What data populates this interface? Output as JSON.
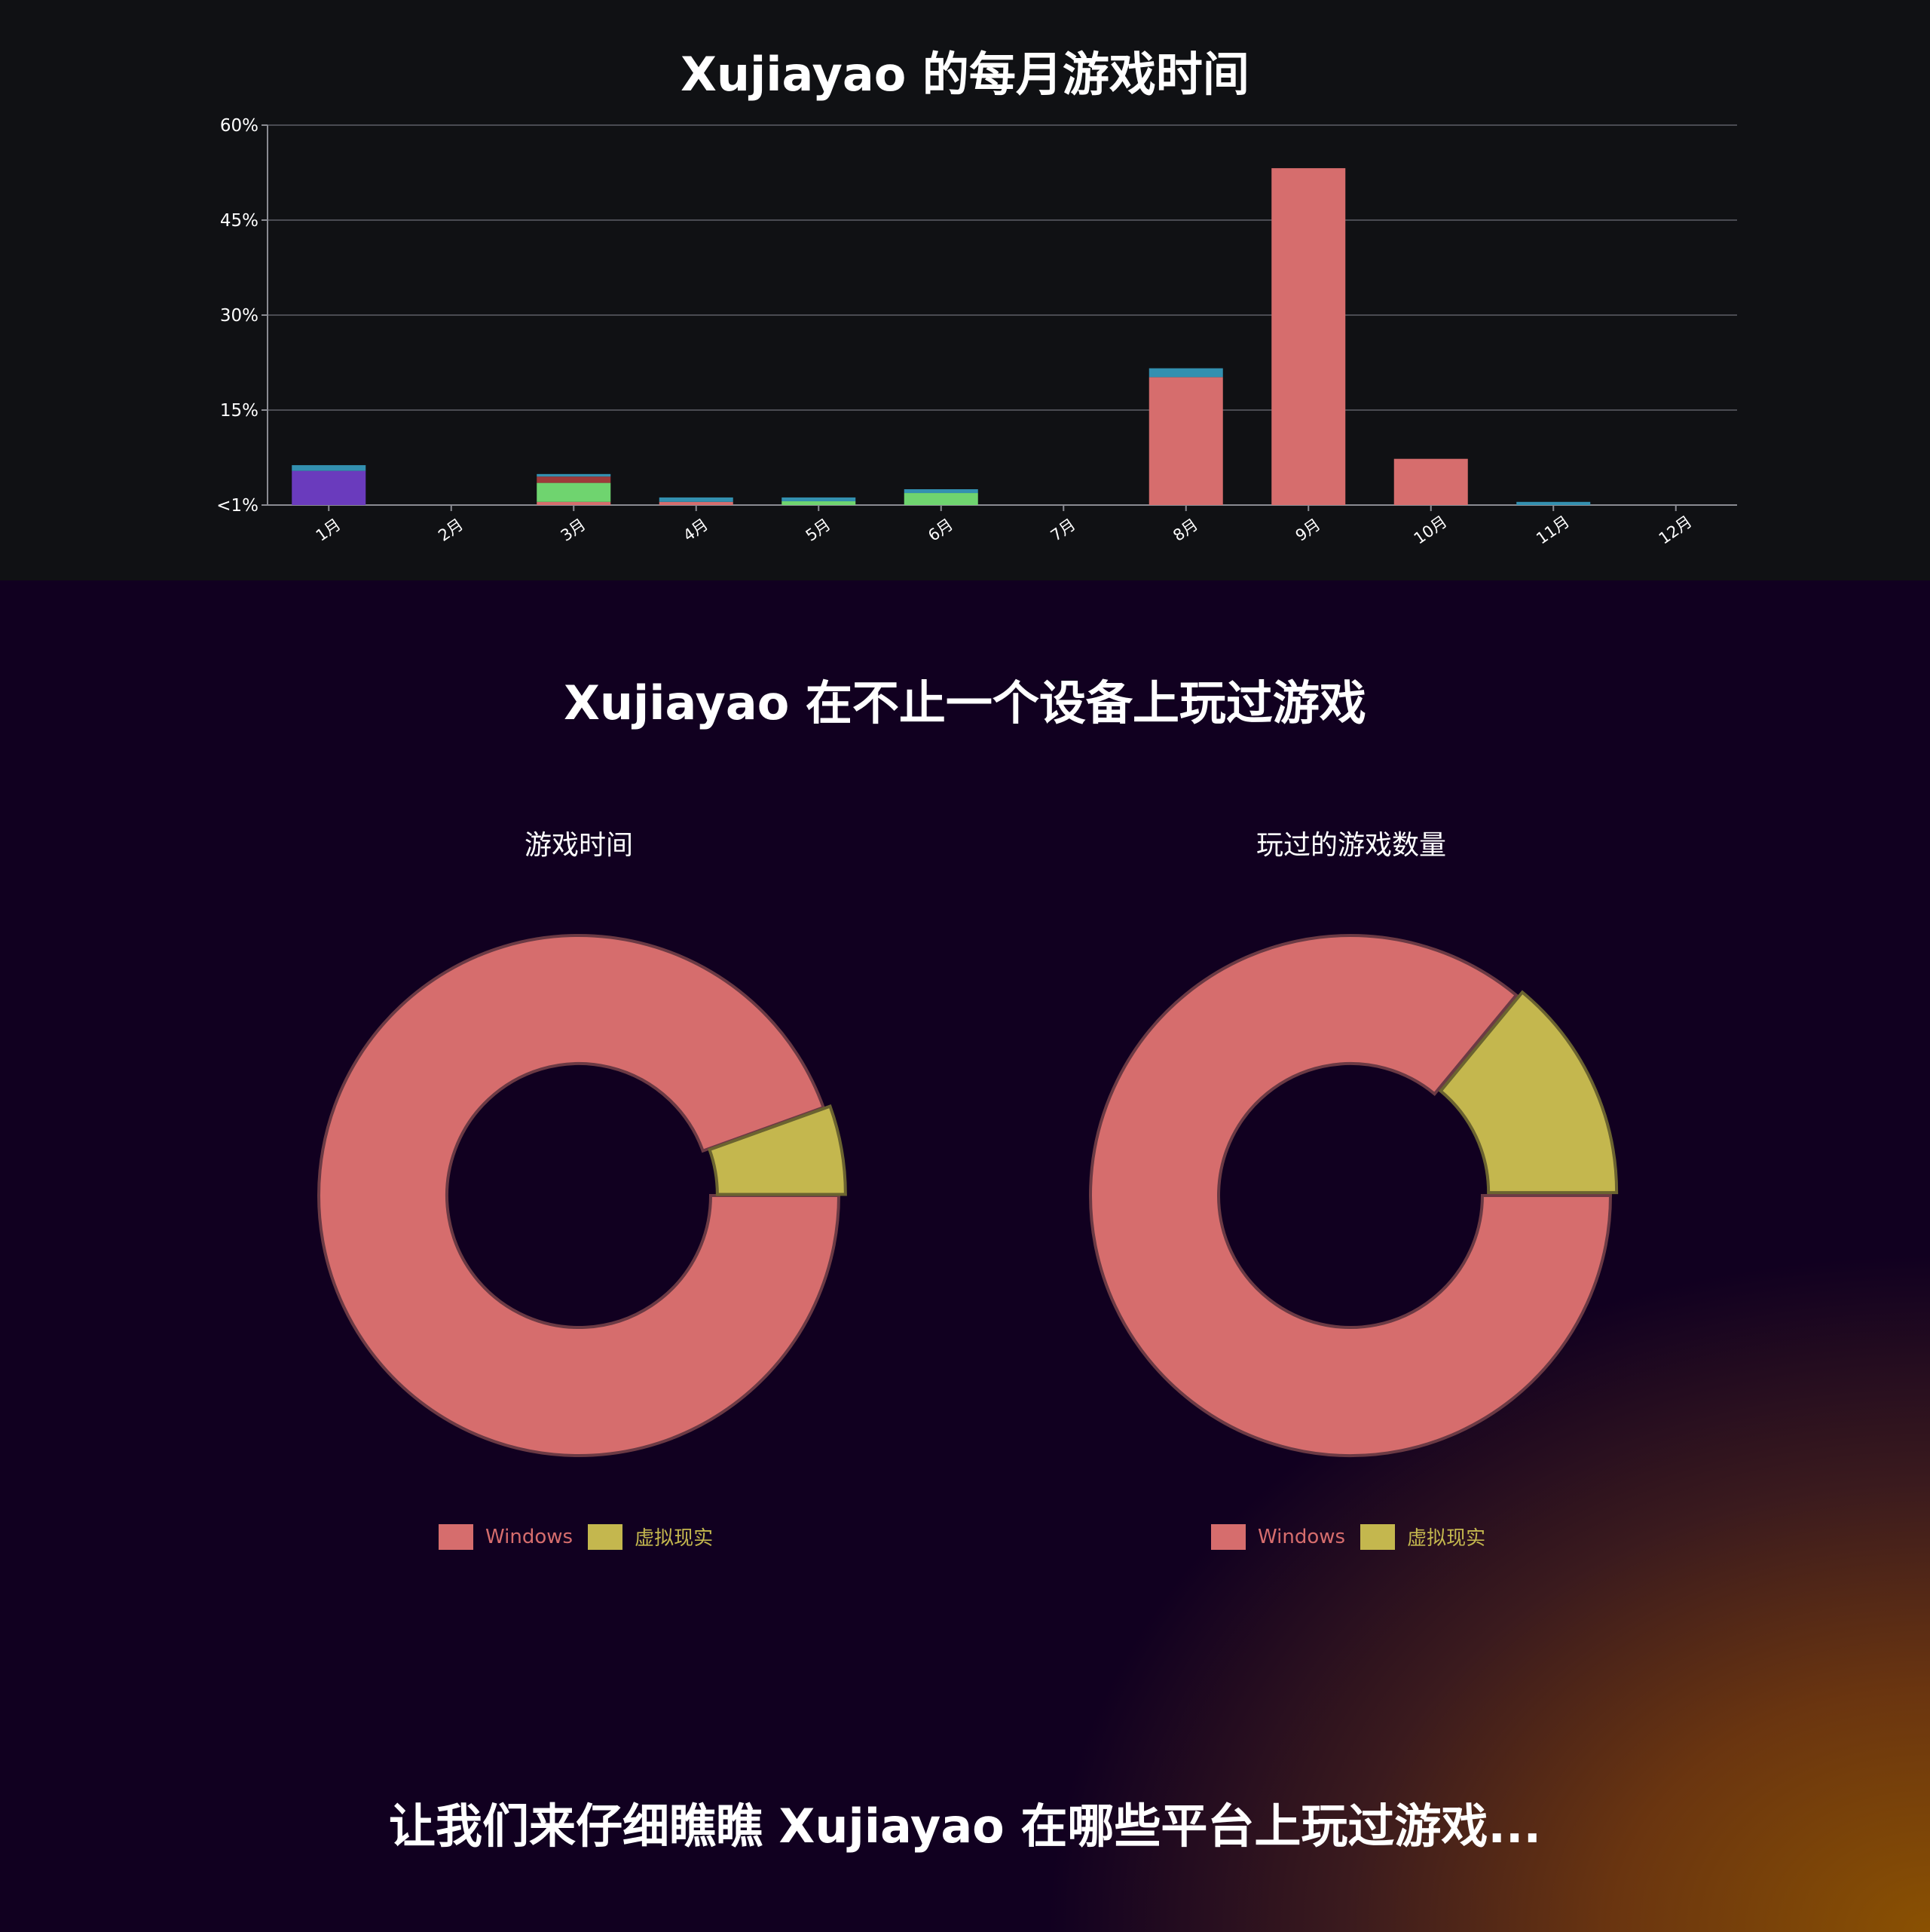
{
  "page": {
    "bar_title": "Xujiayao 的每月游戏时间",
    "devices_title": "Xujiayao 在不止一个设备上玩过游戏",
    "footer_text": "让我们来仔细瞧瞧 Xujiayao 在哪些平台上玩过游戏..."
  },
  "chart_data": [
    {
      "type": "bar",
      "stacked": true,
      "title": "Xujiayao 的每月游戏时间",
      "categories": [
        "1月",
        "2月",
        "3月",
        "4月",
        "5月",
        "6月",
        "7月",
        "8月",
        "9月",
        "10月",
        "11月",
        "12月"
      ],
      "ylim": [
        0,
        60
      ],
      "yticks": [
        {
          "value": 60,
          "label": "60%"
        },
        {
          "value": 45,
          "label": "45%"
        },
        {
          "value": 30,
          "label": "30%"
        },
        {
          "value": 15,
          "label": "15%"
        },
        {
          "value": 0,
          "label": "<1%"
        }
      ],
      "grid": true,
      "series": [
        {
          "color": "#d66d6d",
          "values": [
            0,
            0,
            0.5,
            0.5,
            0,
            0,
            0,
            20.2,
            53.2,
            7.3,
            0,
            0
          ]
        },
        {
          "color": "#6a3bbd",
          "values": [
            5.4,
            0,
            0,
            0,
            0,
            0,
            0,
            0,
            0,
            0,
            0,
            0
          ]
        },
        {
          "color": "#6fd46f",
          "values": [
            0,
            0,
            3.0,
            0,
            0.6,
            1.9,
            0,
            0,
            0,
            0,
            0,
            0
          ]
        },
        {
          "color": "#9e3a3a",
          "values": [
            0,
            0,
            1.0,
            0,
            0,
            0,
            0,
            0,
            0,
            0,
            0,
            0
          ]
        },
        {
          "color": "#3390b0",
          "values": [
            0.9,
            0,
            0.4,
            0.7,
            0.6,
            0.6,
            0,
            1.4,
            0,
            0,
            0.5,
            0
          ]
        }
      ]
    },
    {
      "type": "pie",
      "donut": true,
      "title": "游戏时间",
      "categories": [
        "Windows",
        "虚拟现实"
      ],
      "values": [
        94.5,
        5.5
      ],
      "colors": [
        "#d66d6d",
        "#c4b74e"
      ]
    },
    {
      "type": "pie",
      "donut": true,
      "title": "玩过的游戏数量",
      "categories": [
        "Windows",
        "虚拟现实"
      ],
      "values": [
        86,
        14
      ],
      "colors": [
        "#d66d6d",
        "#c4b74e"
      ]
    }
  ]
}
